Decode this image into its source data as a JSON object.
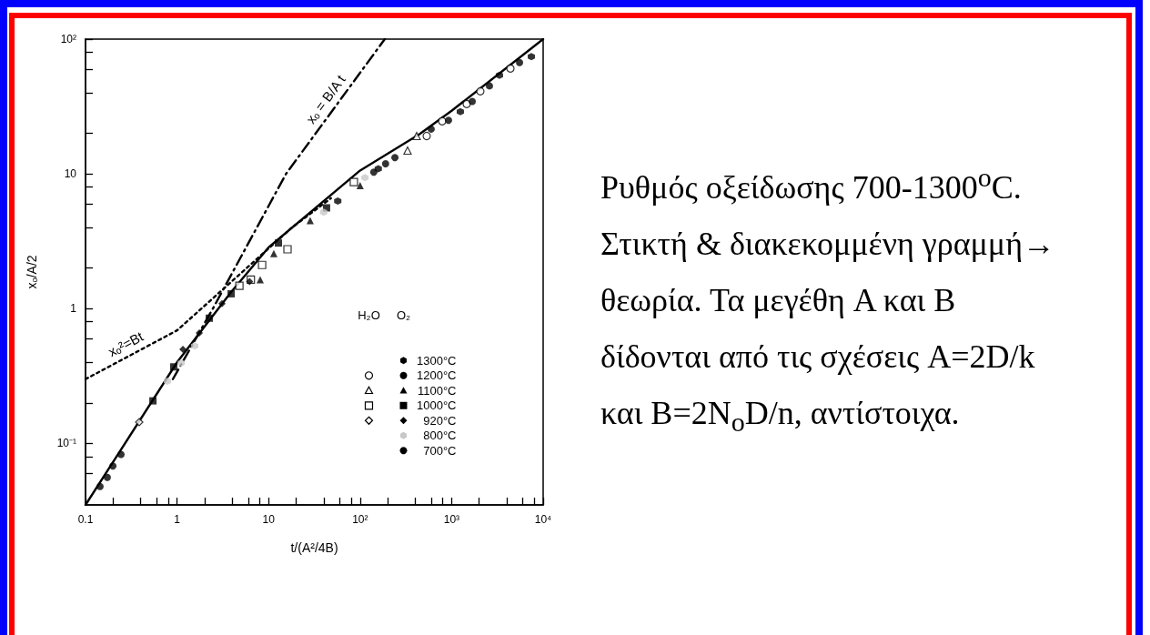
{
  "chart_data": {
    "type": "scatter",
    "xlabel": "t/(A²/4B)",
    "ylabel": "xₒ/A/2",
    "log": "xy",
    "grid": false,
    "legend": "bottom right",
    "xlim": [
      0.1,
      10000
    ],
    "ylim": [
      0.035,
      100
    ],
    "xticks": [
      0.1,
      {
        "value": 0.2,
        "label": null
      },
      {
        "value": 0.4,
        "label": null
      },
      {
        "value": 0.6,
        "label": null
      },
      {
        "value": 0.8,
        "label": null
      },
      1,
      {
        "value": 2,
        "label": null
      },
      {
        "value": 4,
        "label": null
      },
      {
        "value": 6,
        "label": null
      },
      {
        "value": 8,
        "label": null
      },
      10,
      {
        "value": 20,
        "label": null
      },
      {
        "value": 40,
        "label": null
      },
      {
        "value": 60,
        "label": null
      },
      {
        "value": 80,
        "label": null
      },
      {
        "value": 100,
        "label": "10²"
      },
      {
        "value": 200,
        "label": null
      },
      {
        "value": 400,
        "label": null
      },
      {
        "value": 600,
        "label": null
      },
      {
        "value": 800,
        "label": null
      },
      {
        "value": 1000,
        "label": "10³"
      },
      {
        "value": 2000,
        "label": null
      },
      {
        "value": 4000,
        "label": null
      },
      {
        "value": 6000,
        "label": null
      },
      {
        "value": 8000,
        "label": null
      },
      {
        "value": 10000,
        "label": "10⁴"
      }
    ],
    "yticks": [
      {
        "value": 0.06,
        "label": null
      },
      {
        "value": 0.08,
        "label": null
      },
      {
        "value": 0.1,
        "label": "10⁻¹"
      },
      {
        "value": 0.2,
        "label": null
      },
      {
        "value": 0.4,
        "label": null
      },
      {
        "value": 0.6,
        "label": null
      },
      {
        "value": 0.8,
        "label": null
      },
      1,
      {
        "value": 2,
        "label": null
      },
      {
        "value": 4,
        "label": null
      },
      {
        "value": 6,
        "label": null
      },
      {
        "value": 8,
        "label": null
      },
      10,
      {
        "value": 20,
        "label": null
      },
      {
        "value": 40,
        "label": null
      },
      {
        "value": 60,
        "label": null
      },
      {
        "value": 80,
        "label": null
      },
      {
        "value": 100,
        "label": "10²"
      }
    ],
    "series": [
      {
        "type": "scatter",
        "name": "1300°C",
        "color": "#000000",
        "x": [
          7430,
          3330,
          1245,
          158,
          57
        ],
        "values": [
          74,
          54,
          29,
          10.9,
          6.3
        ]
      },
      {
        "type": "scatter",
        "name": "1200°C",
        "color": "#000000",
        "marker": "circle",
        "x": [
          5520,
          2590,
          1680,
          925,
          598,
          240,
          190,
          141
        ],
        "values": [
          67,
          45,
          34.5,
          25,
          21.5,
          13.2,
          11.9,
          10.3
        ]
      },
      {
        "type": "scatter",
        "name": "1100°C",
        "color": "#000000",
        "marker": "triangle",
        "x": [
          100,
          28.5,
          11.4,
          8.1
        ],
        "values": [
          8.2,
          4.5,
          2.56,
          1.64
        ]
      },
      {
        "type": "scatter",
        "name": "1000°C",
        "color": "#000000",
        "marker": "square",
        "x": [
          0.545,
          0.92,
          2.25,
          3.9,
          12.8,
          43
        ],
        "values": [
          0.207,
          0.37,
          0.85,
          1.29,
          3.07,
          5.6
        ]
      },
      {
        "type": "scatter",
        "name": "920°C",
        "color": "#000000",
        "marker": "diamond",
        "x": [
          1.16,
          1.75,
          3.1,
          6.2
        ],
        "values": [
          0.5,
          0.66,
          1.09,
          1.59
        ]
      },
      {
        "type": "scatter",
        "name": "800°C",
        "color": "#c8c8c8",
        "x": [
          0.785,
          1.11,
          1.56,
          40,
          113
        ],
        "values": [
          0.29,
          0.395,
          0.53,
          5.2,
          9.4
        ]
      },
      {
        "type": "scatter",
        "name": "700°C",
        "color": "#000000",
        "marker": "circle",
        "x": [
          0.144,
          0.173,
          0.199,
          0.244
        ],
        "values": [
          0.048,
          0.056,
          0.068,
          0.083
        ]
      },
      {
        "type": "scatter",
        "color": "#000000",
        "marker": "circle",
        "x": [
          534,
          789,
          1462,
          2060,
          4390
        ],
        "values": [
          19.1,
          24.6,
          33,
          41,
          60.5
        ]
      },
      {
        "type": "scatter",
        "color": "#000000",
        "marker": "triangle",
        "x": [
          330,
          415
        ],
        "values": [
          14.9,
          19.1
        ]
      },
      {
        "type": "scatter",
        "color": "#000000",
        "marker": "square",
        "x": [
          4.8,
          6.4,
          8.5,
          16.1,
          85.5
        ],
        "values": [
          1.48,
          1.64,
          2.11,
          2.76,
          8.7
        ]
      },
      {
        "type": "scatter",
        "color": "#000000",
        "marker": "diamond",
        "x": [
          0.386
        ],
        "values": [
          0.144
        ]
      },
      {
        "type": "line",
        "color": "#000000",
        "line_style": "solid",
        "x": [
          0.1,
          1,
          3.9,
          10,
          100,
          445,
          1000,
          10000
        ],
        "values": [
          0.035,
          0.4,
          1.33,
          2.85,
          10.6,
          19.7,
          29.4,
          100
        ]
      },
      {
        "type": "line",
        "name": "xₒ = B/A t",
        "color": "#000000",
        "line_style": "dashdot",
        "x": [
          0.9,
          2.46,
          15.5,
          186
        ],
        "values": [
          0.3,
          1,
          10,
          100
        ]
      },
      {
        "type": "line",
        "name": "xₒ²=Bt",
        "color": "#000000",
        "line_style": "dotted",
        "x": [
          0.1,
          1,
          18,
          48
        ],
        "values": [
          0.3,
          0.69,
          4.0,
          6.6
        ]
      }
    ],
    "annotations": [
      "H₂O",
      "O₂",
      "Ρυθμός οξείδωσης 700-1300$^{o}$C. Στικτή & διακεκομμένη γραμμή→ θεωρία.  Τα μεγέθη A και B δίδονται από τις σχέσεις A=2D/k και B=2N$_{o}$D/n, αντίστοιχα."
    ]
  }
}
